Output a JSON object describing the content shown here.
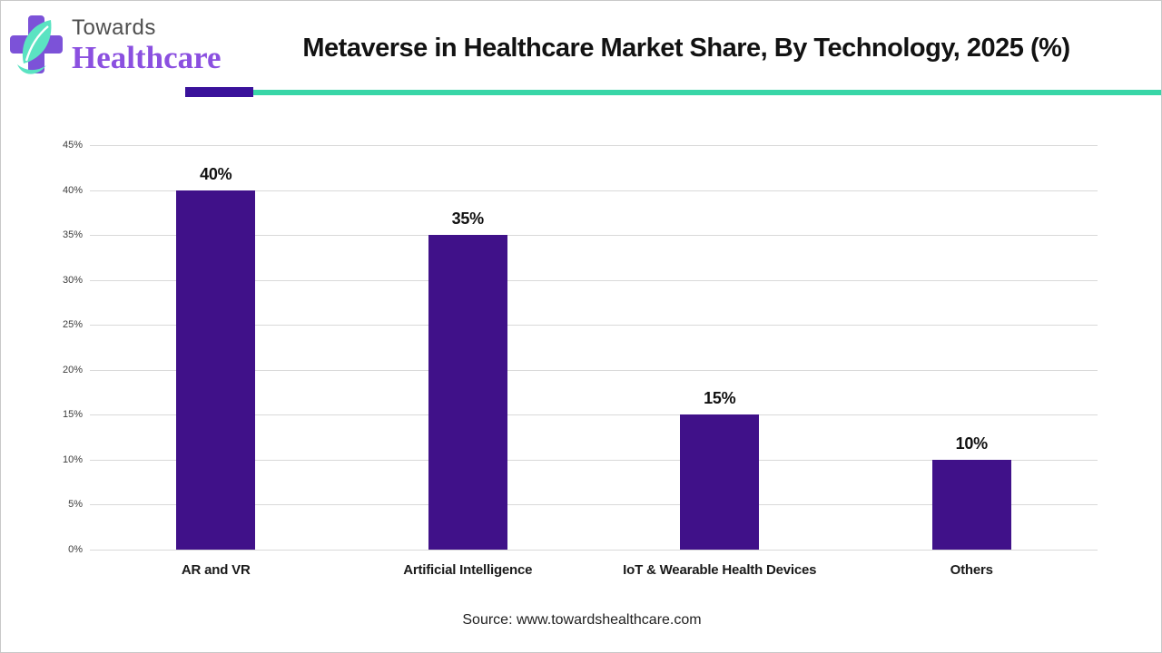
{
  "header": {
    "logo_line1": "Towards",
    "logo_line2": "Healthcare",
    "title": "Metaverse in Healthcare Market Share, By Technology, 2025 (%)"
  },
  "chart_data": {
    "type": "bar",
    "title": "Metaverse in Healthcare Market Share, By Technology, 2025 (%)",
    "categories": [
      "AR and VR",
      "Artificial Intelligence",
      "IoT & Wearable Health Devices",
      "Others"
    ],
    "values": [
      40,
      35,
      15,
      10
    ],
    "value_labels": [
      "40%",
      "35%",
      "15%",
      "10%"
    ],
    "xlabel": "",
    "ylabel": "",
    "ylim": [
      0,
      45
    ],
    "ytick_step": 5,
    "ytick_labels": [
      "0%",
      "5%",
      "10%",
      "15%",
      "20%",
      "25%",
      "30%",
      "35%",
      "40%",
      "45%"
    ],
    "grid": true,
    "legend_position": "none",
    "bar_color": "#401189"
  },
  "footer": {
    "source": "Source: www.towardshealthcare.com"
  },
  "colors": {
    "bar": "#401189",
    "divider_purple": "#3a129b",
    "divider_teal": "#38d6a7",
    "logo_cross": "#7c52d8",
    "logo_leaf": "#5be3c2",
    "logo_towards_text": "#4f4f4f",
    "logo_healthcare_text": "#8b50e0",
    "gridline": "#d9d9d9"
  }
}
